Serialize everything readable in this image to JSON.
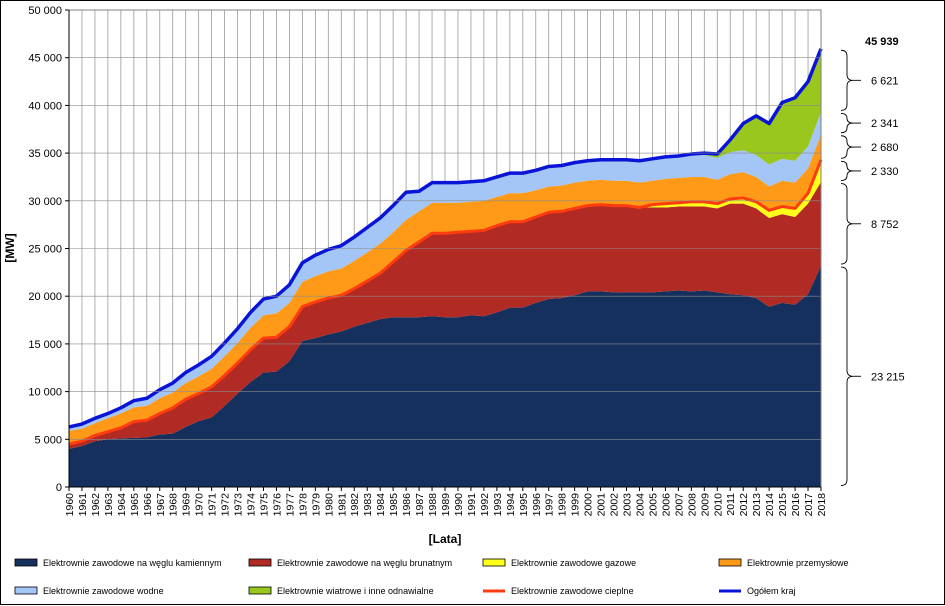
{
  "chart_data": {
    "type": "area",
    "stacked": true,
    "x": [
      1960,
      1961,
      1962,
      1963,
      1964,
      1965,
      1966,
      1967,
      1968,
      1969,
      1970,
      1971,
      1972,
      1973,
      1974,
      1975,
      1976,
      1977,
      1978,
      1979,
      1980,
      1981,
      1982,
      1983,
      1984,
      1985,
      1986,
      1987,
      1988,
      1989,
      1990,
      1991,
      1992,
      1993,
      1994,
      1995,
      1996,
      1997,
      1998,
      1999,
      2000,
      2001,
      2002,
      2003,
      2004,
      2005,
      2006,
      2007,
      2008,
      2009,
      2010,
      2011,
      2012,
      2013,
      2014,
      2015,
      2016,
      2017,
      2018
    ],
    "x_tick_labels": [
      "1960",
      "1961",
      "1962",
      "1963",
      "1964",
      "1965",
      "1966",
      "1967",
      "1968",
      "1969",
      "1970",
      "1971",
      "1972",
      "1973",
      "1974",
      "1975",
      "1976",
      "1977",
      "1978",
      "1979",
      "1980",
      "1981",
      "1982",
      "1983",
      "1984",
      "1985",
      "1986",
      "1987",
      "1988",
      "1989",
      "1990",
      "1991",
      "1992",
      "1993",
      "1994",
      "1995",
      "1996",
      "1997",
      "1998",
      "1999",
      "2000",
      "2001",
      "2002",
      "2003",
      "2004",
      "2005",
      "2006",
      "2007",
      "2008",
      "2009",
      "2010",
      "2011",
      "2012",
      "2013",
      "2014",
      "2015",
      "2016",
      "2017",
      "2018"
    ],
    "y_tick_labels": [
      "0",
      "5 000",
      "10 000",
      "15 000",
      "20 000",
      "25 000",
      "30 000",
      "35 000",
      "40 000",
      "45 000",
      "50 000"
    ],
    "xlabel": "[Lata]",
    "ylabel": "[MW]",
    "ylim": [
      0,
      50000
    ],
    "grid": true,
    "legend_position": "bottom",
    "series": [
      {
        "name": "Elektrownie zawodowe na węglu kamiennym",
        "color": "#16305e",
        "kind": "area",
        "values": [
          4000,
          4300,
          4800,
          5000,
          5100,
          5150,
          5200,
          5500,
          5600,
          6300,
          6900,
          7300,
          8500,
          9800,
          11000,
          12000,
          12100,
          13200,
          15300,
          15600,
          16000,
          16300,
          16800,
          17200,
          17600,
          17800,
          17800,
          17800,
          17900,
          17800,
          17800,
          18000,
          17900,
          18300,
          18800,
          18800,
          19300,
          19700,
          19800,
          20100,
          20500,
          20500,
          20400,
          20400,
          20400,
          20400,
          20500,
          20600,
          20500,
          20600,
          20400,
          20200,
          20100,
          19800,
          18900,
          19300,
          19100,
          20200,
          23215
        ]
      },
      {
        "name": "Elektrownie zawodowe na węglu brunatnym",
        "color": "#b22a24",
        "kind": "area",
        "values": [
          500,
          500,
          600,
          800,
          1100,
          1700,
          1800,
          2200,
          2700,
          2900,
          2900,
          3200,
          3200,
          3200,
          3400,
          3600,
          3600,
          3600,
          3600,
          3800,
          3800,
          3800,
          4000,
          4400,
          4800,
          5800,
          7000,
          7900,
          8700,
          8800,
          8900,
          8800,
          9000,
          9100,
          9000,
          9000,
          9000,
          9100,
          9100,
          9100,
          9000,
          9100,
          9100,
          9100,
          8900,
          8900,
          8800,
          8800,
          8900,
          8800,
          8800,
          9500,
          9600,
          9400,
          9300,
          9300,
          9200,
          9500,
          8752
        ]
      },
      {
        "name": "Elektrownie zawodowe gazowe",
        "color": "#ffff1a",
        "kind": "area",
        "values": [
          0,
          0,
          0,
          0,
          0,
          0,
          0,
          0,
          0,
          0,
          0,
          0,
          0,
          0,
          0,
          0,
          0,
          0,
          0,
          0,
          0,
          0,
          0,
          0,
          0,
          0,
          0,
          0,
          0,
          0,
          0,
          0,
          0,
          0,
          0,
          0,
          0,
          0,
          0,
          0,
          0,
          0,
          0,
          0,
          0,
          300,
          400,
          400,
          500,
          500,
          500,
          500,
          600,
          700,
          800,
          800,
          900,
          1100,
          2330
        ]
      },
      {
        "name": "Elektrownie przemysłowe",
        "color": "#ff9a19",
        "kind": "area",
        "values": [
          1400,
          1300,
          1300,
          1400,
          1500,
          1500,
          1500,
          1600,
          1600,
          1700,
          1800,
          1900,
          2000,
          2100,
          2300,
          2400,
          2500,
          2500,
          2600,
          2700,
          2800,
          2800,
          2900,
          3000,
          3100,
          3100,
          3200,
          3200,
          3200,
          3200,
          3100,
          3100,
          3100,
          3000,
          3000,
          3000,
          2800,
          2700,
          2700,
          2700,
          2600,
          2600,
          2600,
          2600,
          2600,
          2500,
          2600,
          2600,
          2600,
          2600,
          2500,
          2600,
          2700,
          2600,
          2500,
          2700,
          2700,
          2600,
          2680
        ]
      },
      {
        "name": "Elektrownie zawodowe wodne",
        "color": "#a3c6f7",
        "kind": "area",
        "values": [
          400,
          500,
          500,
          500,
          600,
          700,
          800,
          900,
          1000,
          1100,
          1200,
          1300,
          1400,
          1500,
          1600,
          1700,
          1800,
          1900,
          2000,
          2200,
          2300,
          2400,
          2500,
          2600,
          2700,
          2800,
          2900,
          2100,
          2100,
          2100,
          2100,
          2100,
          2100,
          2100,
          2100,
          2100,
          2100,
          2100,
          2100,
          2100,
          2100,
          2100,
          2200,
          2200,
          2300,
          2300,
          2300,
          2300,
          2300,
          2300,
          2300,
          2300,
          2300,
          2300,
          2300,
          2300,
          2300,
          2300,
          2341
        ]
      },
      {
        "name": "Elektrownie wiatrowe i inne odnawialne",
        "color": "#99c71e",
        "kind": "area",
        "values": [
          0,
          0,
          0,
          0,
          0,
          0,
          0,
          0,
          0,
          0,
          0,
          0,
          0,
          0,
          0,
          0,
          0,
          0,
          0,
          0,
          0,
          0,
          0,
          0,
          0,
          0,
          0,
          0,
          0,
          0,
          0,
          0,
          0,
          0,
          0,
          0,
          0,
          0,
          0,
          0,
          0,
          0,
          0,
          0,
          0,
          0,
          0,
          0,
          100,
          200,
          400,
          1300,
          2800,
          4100,
          4300,
          5900,
          6600,
          6800,
          6621
        ]
      },
      {
        "name": "Elektrownie zawodowe cieplne",
        "color": "#ff3c0f",
        "kind": "line"
      },
      {
        "name": "Ogółem kraj",
        "color": "#0a14d6",
        "kind": "line"
      }
    ],
    "annotations": {
      "total": "45 939",
      "items": [
        "6 621",
        "2 341",
        "2 680",
        "2 330",
        "8 752",
        "23 215"
      ]
    }
  }
}
